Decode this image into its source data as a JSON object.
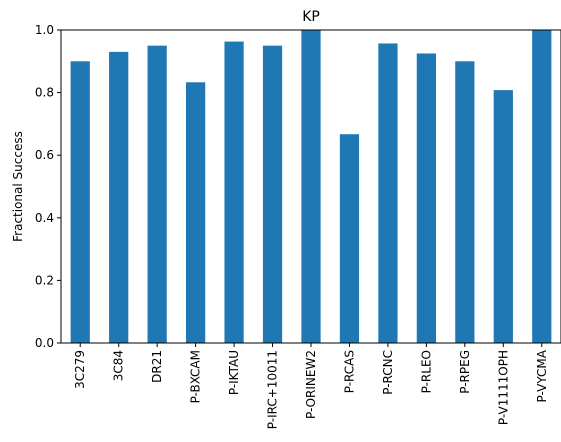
{
  "chart_data": {
    "type": "bar",
    "title": "KP",
    "xlabel": "",
    "ylabel": "Fractional Success",
    "categories": [
      "3C279",
      "3C84",
      "DR21",
      "P-BXCAM",
      "P-IKTAU",
      "P-IRC+10011",
      "P-ORINEW2",
      "P-RCAS",
      "P-RCNC",
      "P-RLEO",
      "P-RPEG",
      "P-V1111OPH",
      "P-VYCMA"
    ],
    "values": [
      0.9,
      0.93,
      0.95,
      0.833,
      0.963,
      0.95,
      1.0,
      0.667,
      0.957,
      0.925,
      0.9,
      0.808,
      1.0
    ],
    "ylim": [
      0.0,
      1.0
    ],
    "yticks": [
      "0.0",
      "0.2",
      "0.4",
      "0.6",
      "0.8",
      "1.0"
    ],
    "grid": false,
    "bar_color": "#1f77b4"
  }
}
